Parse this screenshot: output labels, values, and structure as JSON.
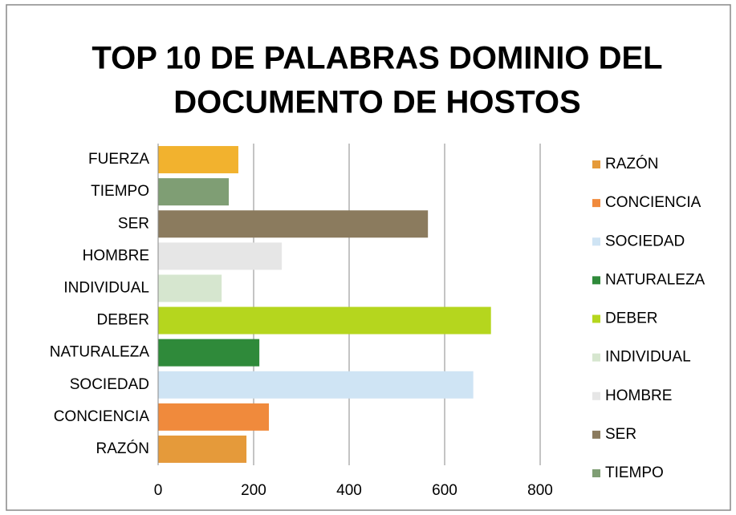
{
  "chart_data": {
    "type": "bar",
    "orientation": "horizontal",
    "title_lines": [
      "TOP 10 DE PALABRAS DOMINIO DEL",
      "DOCUMENTO DE HOSTOS"
    ],
    "categories": [
      "RAZÓN",
      "CONCIENCIA",
      "SOCIEDAD",
      "NATURALEZA",
      "DEBER",
      "INDIVIDUAL",
      "HOMBRE",
      "SER",
      "TIEMPO",
      "FUERZA"
    ],
    "values": [
      185,
      232,
      660,
      212,
      697,
      133,
      259,
      565,
      148,
      168
    ],
    "colors": [
      "#e59a3a",
      "#f08a3c",
      "#cfe4f4",
      "#2f8a3a",
      "#b5d61e",
      "#d6e6cf",
      "#e6e6e6",
      "#8b7b5e",
      "#7f9e74",
      "#f2b22e"
    ],
    "xlim": [
      0,
      800
    ],
    "xticks": [
      0,
      200,
      400,
      600,
      800
    ],
    "grid": true,
    "legend_count": 9,
    "legend_position": "right"
  }
}
